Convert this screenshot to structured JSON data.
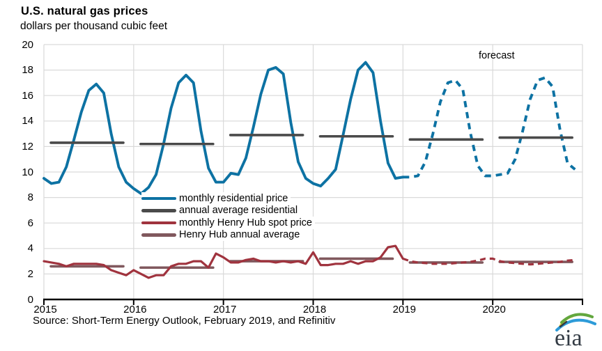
{
  "header": {
    "title": "U.S. natural gas prices",
    "subtitle": "dollars per thousand cubic feet"
  },
  "annotations": {
    "forecast_label": "forecast"
  },
  "source": {
    "text": "Source: Short-Term Energy Outlook, February 2019, and Refinitiv"
  },
  "logo": {
    "text": "eia"
  },
  "chart_data": {
    "type": "line",
    "title": "U.S. natural gas prices",
    "ylabel": "dollars per thousand cubic feet",
    "ylim": [
      0,
      20
    ],
    "y_tick_interval": 2,
    "grid": true,
    "legend_position": "inside-middle-left",
    "years": [
      "2015",
      "2016",
      "2017",
      "2018",
      "2019",
      "2020"
    ],
    "x_unit": "month",
    "forecast_starts_after": "2019-01",
    "forecast_start_index": 48,
    "series": [
      {
        "name": "monthly residential price",
        "color": "#0d72a3",
        "style": "solid history, dashed forecast",
        "values": [
          9.5,
          9.1,
          9.2,
          10.4,
          12.5,
          14.7,
          16.4,
          16.9,
          16.2,
          13.0,
          10.4,
          9.2,
          8.7,
          8.3,
          8.8,
          9.8,
          12.2,
          15.0,
          17.0,
          17.6,
          17.0,
          13.2,
          10.3,
          9.2,
          9.2,
          9.9,
          9.8,
          11.1,
          13.5,
          16.1,
          18.0,
          18.2,
          17.7,
          13.9,
          10.8,
          9.5,
          9.1,
          8.9,
          9.5,
          10.2,
          12.9,
          15.7,
          18.0,
          18.6,
          17.8,
          14.0,
          10.7,
          9.5,
          9.6,
          9.6,
          9.7,
          10.8,
          13.0,
          15.5,
          17.0,
          17.2,
          16.5,
          13.1,
          10.5,
          9.7,
          9.7,
          9.8,
          9.9,
          11.0,
          13.2,
          15.7,
          17.2,
          17.4,
          16.7,
          13.3,
          10.7,
          10.2
        ]
      },
      {
        "name": "annual average residential",
        "color": "#4a4a4a",
        "style": "solid horizontal segment per year",
        "values": [
          12.3,
          12.2,
          12.9,
          12.8,
          12.55,
          12.7
        ]
      },
      {
        "name": "monthly Henry Hub spot price",
        "color": "#a0333e",
        "style": "solid history, dashed forecast",
        "values": [
          3.0,
          2.9,
          2.8,
          2.6,
          2.8,
          2.8,
          2.8,
          2.8,
          2.7,
          2.3,
          2.1,
          1.9,
          2.3,
          2.0,
          1.7,
          1.9,
          1.9,
          2.6,
          2.8,
          2.8,
          3.0,
          3.0,
          2.5,
          3.6,
          3.3,
          2.9,
          2.9,
          3.1,
          3.2,
          3.0,
          3.0,
          2.9,
          3.0,
          2.9,
          3.0,
          2.8,
          3.7,
          2.7,
          2.7,
          2.8,
          2.8,
          3.0,
          2.8,
          3.0,
          3.0,
          3.3,
          4.1,
          4.2,
          3.2,
          3.0,
          2.9,
          2.85,
          2.8,
          2.8,
          2.8,
          2.85,
          2.9,
          2.95,
          3.05,
          3.2,
          3.2,
          3.0,
          2.9,
          2.85,
          2.8,
          2.75,
          2.8,
          2.85,
          2.9,
          2.95,
          3.05,
          3.1
        ]
      },
      {
        "name": "Henry Hub annual average",
        "color": "#80585d",
        "style": "solid horizontal segment per year",
        "values": [
          2.6,
          2.5,
          3.0,
          3.2,
          2.9,
          2.95
        ]
      }
    ]
  }
}
